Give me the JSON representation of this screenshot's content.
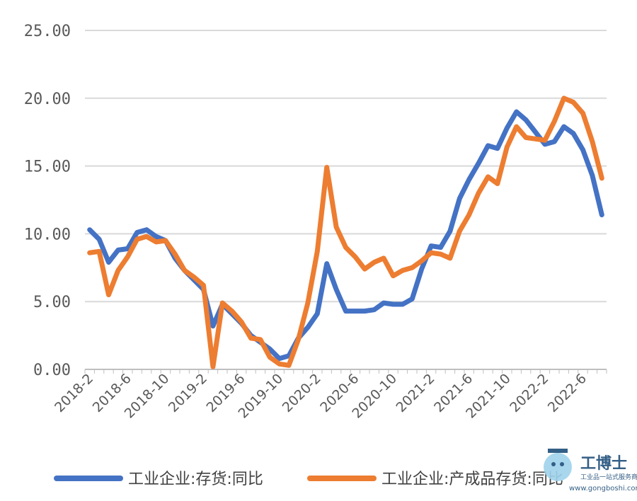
{
  "chart_data": {
    "type": "line",
    "x": [
      "2018-2",
      "2018-3",
      "2018-4",
      "2018-5",
      "2018-6",
      "2018-7",
      "2018-8",
      "2018-9",
      "2018-10",
      "2018-11",
      "2018-12",
      "2019-1",
      "2019-2",
      "2019-3",
      "2019-4",
      "2019-5",
      "2019-6",
      "2019-7",
      "2019-8",
      "2019-9",
      "2019-10",
      "2019-11",
      "2019-12",
      "2020-1",
      "2020-2",
      "2020-3",
      "2020-4",
      "2020-5",
      "2020-6",
      "2020-7",
      "2020-8",
      "2020-9",
      "2020-10",
      "2020-11",
      "2020-12",
      "2021-1",
      "2021-2",
      "2021-3",
      "2021-4",
      "2021-5",
      "2021-6",
      "2021-7",
      "2021-8",
      "2021-9",
      "2021-10",
      "2021-11",
      "2021-12",
      "2022-1",
      "2022-2",
      "2022-3",
      "2022-4",
      "2022-5",
      "2022-6",
      "2022-7",
      "2022-8"
    ],
    "x_tick_labels": [
      "2018-2",
      "2018-6",
      "2018-10",
      "2019-2",
      "2019-6",
      "2019-10",
      "2020-2",
      "2020-6",
      "2020-10",
      "2021-2",
      "2021-6",
      "2021-10",
      "2022-2",
      "2022-6"
    ],
    "series": [
      {
        "name": "工业企业:存货:同比",
        "color": "#4472C4",
        "values": [
          10.3,
          9.6,
          7.9,
          8.8,
          8.9,
          10.1,
          10.3,
          9.8,
          9.5,
          8.2,
          7.3,
          6.6,
          5.9,
          3.2,
          4.8,
          4.1,
          3.4,
          2.5,
          2.0,
          1.5,
          0.8,
          1.0,
          2.3,
          3.1,
          4.1,
          7.8,
          5.9,
          4.3,
          4.3,
          4.3,
          4.4,
          4.9,
          4.8,
          4.8,
          5.2,
          7.4,
          9.1,
          9.0,
          10.2,
          12.6,
          14.0,
          15.2,
          16.5,
          16.3,
          17.8,
          19.0,
          18.4,
          17.5,
          16.6,
          16.8,
          17.9,
          17.4,
          16.2,
          14.3,
          11.4
        ]
      },
      {
        "name": "工业企业:产成品存货:同比",
        "color": "#ED7D31",
        "values": [
          8.6,
          8.7,
          5.5,
          7.3,
          8.3,
          9.6,
          9.8,
          9.4,
          9.5,
          8.5,
          7.3,
          6.8,
          6.2,
          0.2,
          4.9,
          4.3,
          3.5,
          2.3,
          2.2,
          0.9,
          0.4,
          0.3,
          2.2,
          4.9,
          8.7,
          14.9,
          10.5,
          9.0,
          8.3,
          7.4,
          7.9,
          8.2,
          6.9,
          7.3,
          7.5,
          8.0,
          8.6,
          8.5,
          8.2,
          10.2,
          11.4,
          13.0,
          14.2,
          13.7,
          16.4,
          17.9,
          17.1,
          17.0,
          16.9,
          18.3,
          20.0,
          19.7,
          18.9,
          16.8,
          14.1
        ]
      }
    ],
    "ylim": [
      0,
      25
    ],
    "y_tick_labels": [
      "0.00",
      "5.00",
      "10.00",
      "15.00",
      "20.00",
      "25.00"
    ],
    "grid": true,
    "legend_position": "bottom"
  },
  "legend": {
    "item1": "工业企业:存货:同比",
    "item2": "工业企业:产成品存货:同比"
  },
  "watermark": {
    "brand": "工博士",
    "tagline": "工业品一站式服务商",
    "url": "www.gongboshi.com"
  }
}
